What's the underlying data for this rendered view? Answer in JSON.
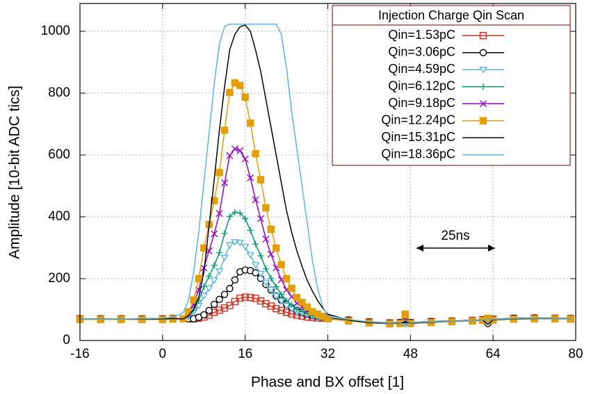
{
  "chart_data": {
    "type": "line",
    "xlabel": "Phase and BX offset [1]",
    "ylabel": "Amplitude [10-bit ADC tics]",
    "legend_title": "Injection Charge Qin Scan",
    "legend": "upper right",
    "grid": true,
    "annotation": "25ns",
    "xlim": [
      -16,
      80
    ],
    "xticks": [
      -16,
      0,
      16,
      32,
      48,
      64,
      80
    ],
    "ylim": [
      0,
      1090
    ],
    "yticks": [
      0,
      200,
      400,
      600,
      800,
      1000
    ],
    "x": [
      -16,
      -12,
      -8,
      -4,
      0,
      2,
      4,
      5,
      6,
      7,
      8,
      9,
      10,
      11,
      12,
      13,
      14,
      15,
      16,
      17,
      18,
      19,
      20,
      21,
      22,
      23,
      24,
      25,
      26,
      27,
      28,
      29,
      30,
      31,
      32,
      36,
      40,
      44,
      46,
      47,
      48,
      52,
      56,
      60,
      62,
      63,
      64,
      68,
      72,
      76,
      79
    ],
    "series": [
      {
        "name": "Qin=1.53pC",
        "color": "#d7301f",
        "marker": "square-open",
        "values": [
          70,
          70,
          70,
          70,
          70,
          71,
          70,
          70,
          70,
          72,
          76,
          82,
          91,
          98,
          105,
          113,
          126,
          137,
          140,
          139,
          136,
          128,
          119,
          111,
          103,
          97,
          91,
          86,
          82,
          79,
          76,
          75,
          73,
          72,
          71,
          66,
          60,
          57,
          58,
          80,
          58,
          61,
          63,
          65,
          67,
          68,
          69,
          72,
          73,
          72,
          71
        ]
      },
      {
        "name": "Qin=3.06pC",
        "color": "#000000",
        "marker": "circle-open",
        "values": [
          70,
          70,
          70,
          70,
          70,
          71,
          70,
          70,
          70,
          75,
          83,
          97,
          117,
          133,
          149,
          168,
          196,
          222,
          228,
          226,
          219,
          201,
          181,
          163,
          144,
          130,
          117,
          106,
          97,
          91,
          84,
          81,
          78,
          75,
          73,
          66,
          60,
          57,
          58,
          60,
          58,
          61,
          63,
          65,
          67,
          55,
          68,
          72,
          73,
          72,
          71
        ]
      },
      {
        "name": "Qin=4.59pC",
        "color": "#56b4e9",
        "marker": "triangle-down-open",
        "values": [
          70,
          70,
          70,
          70,
          70,
          71,
          70,
          77,
          90,
          112,
          144,
          169,
          194,
          224,
          268,
          308,
          318,
          316,
          303,
          276,
          244,
          216,
          187,
          164,
          144,
          127,
          112,
          102,
          92,
          87,
          82,
          77,
          75,
          72,
          70,
          65,
          59,
          56,
          57,
          52,
          57,
          60,
          62,
          64,
          66,
          60,
          68,
          71,
          72,
          71,
          70
        ]
      },
      {
        "name": "Qin=6.12pC",
        "color": "#009e73",
        "marker": "plus",
        "values": [
          70,
          70,
          70,
          70,
          70,
          71,
          70,
          80,
          98,
          129,
          174,
          208,
          243,
          284,
          346,
          401,
          415,
          412,
          394,
          356,
          312,
          274,
          232,
          201,
          174,
          149,
          129,
          115,
          101,
          94,
          87,
          80,
          77,
          73,
          70,
          65,
          59,
          56,
          57,
          60,
          57,
          60,
          62,
          64,
          66,
          68,
          68,
          71,
          72,
          71,
          70
        ]
      },
      {
        "name": "Qin=9.18pC",
        "color": "#9400d3",
        "marker": "cross",
        "values": [
          70,
          70,
          70,
          70,
          70,
          71,
          70,
          86,
          114,
          164,
          235,
          290,
          345,
          411,
          510,
          598,
          620,
          614,
          587,
          526,
          455,
          394,
          328,
          279,
          235,
          197,
          164,
          142,
          120,
          109,
          98,
          87,
          81,
          76,
          70,
          64,
          58,
          55,
          56,
          60,
          56,
          59,
          62,
          64,
          66,
          68,
          67,
          70,
          71,
          71,
          70
        ]
      },
      {
        "name": "Qin=12.24pC",
        "color": "#e69f00",
        "marker": "square",
        "values": [
          68,
          68,
          68,
          68,
          68,
          69,
          70,
          93,
          131,
          200,
          299,
          375,
          452,
          543,
          680,
          802,
          833,
          825,
          787,
          703,
          604,
          520,
          429,
          360,
          299,
          245,
          200,
          169,
          139,
          123,
          108,
          93,
          85,
          78,
          70,
          63,
          57,
          54,
          55,
          85,
          55,
          58,
          61,
          63,
          65,
          72,
          66,
          69,
          70,
          70,
          69
        ]
      },
      {
        "name": "Qin=15.31pC",
        "color": "#000000",
        "marker": "none",
        "values": [
          70,
          70,
          70,
          70,
          70,
          71,
          70,
          80,
          100,
          140,
          220,
          370,
          520,
          680,
          820,
          940,
          990,
          1015,
          1020,
          1000,
          940,
          870,
          780,
          690,
          600,
          510,
          420,
          350,
          290,
          240,
          195,
          160,
          130,
          105,
          85,
          66,
          58,
          55,
          56,
          60,
          56,
          59,
          62,
          64,
          66,
          52,
          67,
          70,
          71,
          71,
          70
        ]
      },
      {
        "name": "Qin=18.36pC",
        "color": "#56b4e9",
        "marker": "none",
        "values": [
          70,
          70,
          70,
          71,
          72,
          75,
          90,
          130,
          220,
          350,
          510,
          670,
          830,
          960,
          1015,
          1023,
          1023,
          1023,
          1023,
          1023,
          1023,
          1023,
          1023,
          1023,
          1023,
          990,
          880,
          740,
          620,
          500,
          380,
          260,
          170,
          110,
          80,
          68,
          60,
          56,
          57,
          50,
          57,
          60,
          62,
          64,
          66,
          68,
          68,
          71,
          72,
          71,
          70
        ]
      }
    ]
  }
}
